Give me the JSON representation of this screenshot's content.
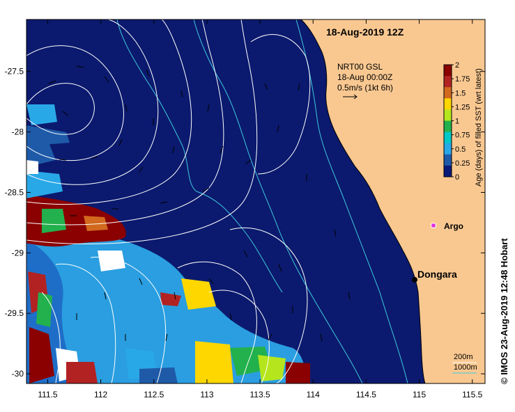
{
  "title": "18-Aug-2019 12Z",
  "product": {
    "line1": "NRT00 GSL",
    "line2": "18-Aug 00:00Z",
    "line3": "0.5m/s (1kt 6h)"
  },
  "credit": "© IMOS 23-Aug-2019 12:48 Hobart",
  "colorbar": {
    "title": "Age (days) of filled SST (wrt latest)",
    "ticks": [
      "2",
      "1.75",
      "1.5",
      "1.25",
      "1",
      "0.75",
      "0.5",
      "0.25",
      "0"
    ],
    "colors": [
      "#8b0000",
      "#b22222",
      "#d2691e",
      "#ffd700",
      "#b5e61d",
      "#22b14c",
      "#00c8c8",
      "#29a8e8",
      "#1e5aa8",
      "#0a1a78"
    ]
  },
  "x_axis": {
    "ticks": [
      "111.5",
      "112",
      "112.5",
      "113",
      "113.5",
      "114",
      "114.5",
      "115",
      "115.5"
    ],
    "tick_values": [
      111.5,
      112,
      112.5,
      113,
      113.5,
      114,
      114.5,
      115,
      115.5
    ],
    "range": [
      111.3,
      115.62
    ]
  },
  "y_axis": {
    "ticks": [
      "-27.5",
      "-28",
      "-28.5",
      "-29",
      "-29.5",
      "-30"
    ],
    "tick_values": [
      -27.5,
      -28,
      -28.5,
      -29,
      -29.5,
      -30
    ],
    "range": [
      -30.08,
      -27.07
    ]
  },
  "places": [
    {
      "name": "Dongara",
      "lon": 114.93,
      "lat": -29.25,
      "color": "#000000"
    },
    {
      "name": "Argo",
      "lon": 115.12,
      "lat": -28.83,
      "color": "#dd33dd"
    }
  ],
  "depth_legend": {
    "label1": "200m",
    "label2": "1000m"
  },
  "colors": {
    "ocean": "#0b1a6e",
    "land": "#f9c891",
    "coast": "#000000",
    "isobath": "#3ecbe0",
    "contour": "#ffffff",
    "warm_sst": "#2a9ee0",
    "argo": "#dd33dd"
  }
}
